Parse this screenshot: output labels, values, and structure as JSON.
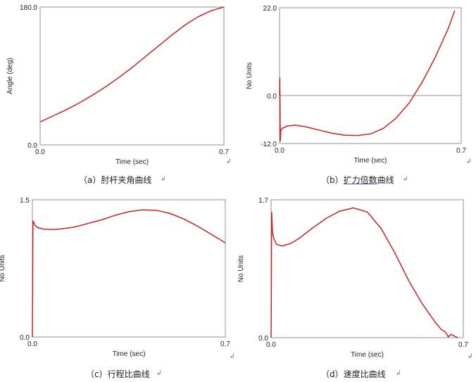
{
  "return_mark": "↲",
  "chart_data": [
    {
      "type": "line",
      "ylabel": "Angle (deg)",
      "xlabel": "Time (sec)",
      "xlim": [
        0.0,
        0.7
      ],
      "ylim": [
        0.0,
        180.0
      ],
      "x_ticks": [
        "0.0",
        "0.7"
      ],
      "y_ticks": [
        "0.0",
        "180.0"
      ],
      "grid": false,
      "caption": "（a）肘杆夹角曲线",
      "series": [
        {
          "color": "#cc2222",
          "x": [
            0.0,
            0.05,
            0.1,
            0.15,
            0.2,
            0.25,
            0.3,
            0.35,
            0.4,
            0.45,
            0.5,
            0.55,
            0.6,
            0.65,
            0.7
          ],
          "y": [
            30,
            38,
            46,
            55,
            65,
            76,
            88,
            101,
            115,
            129,
            143,
            156,
            167,
            175,
            180
          ]
        }
      ]
    },
    {
      "type": "line",
      "ylabel": "No Units",
      "xlabel": "Time (sec)",
      "xlim": [
        0.0,
        0.7
      ],
      "ylim": [
        -12.0,
        22.0
      ],
      "x_ticks": [
        "0.0",
        "0.7"
      ],
      "y_ticks": [
        "-12.0",
        "0.0",
        "22.0"
      ],
      "zero_line": true,
      "grid": false,
      "caption": "（b）扩力倍数曲线",
      "caption_underlined_part": "扩力倍数",
      "series": [
        {
          "color": "#cc2222",
          "x": [
            0.0,
            0.001,
            0.002,
            0.003,
            0.005,
            0.01,
            0.03,
            0.06,
            0.1,
            0.15,
            0.2,
            0.25,
            0.3,
            0.35,
            0.4,
            0.45,
            0.5,
            0.55,
            0.6,
            0.65,
            0.675
          ],
          "y": [
            0,
            4.5,
            -3,
            -11.5,
            -8.8,
            -8.2,
            -7.6,
            -7.4,
            -7.8,
            -8.6,
            -9.4,
            -9.9,
            -10.0,
            -9.6,
            -8.2,
            -5.6,
            -1.8,
            3.4,
            9.6,
            16.8,
            21.3
          ]
        }
      ]
    },
    {
      "type": "line",
      "ylabel": "No Units",
      "xlabel": "Time (sec)",
      "xlim": [
        0.0,
        0.7
      ],
      "ylim": [
        0.0,
        1.5
      ],
      "x_ticks": [
        "0.0",
        "0.7"
      ],
      "y_ticks": [
        "0.0",
        "1.5"
      ],
      "grid": false,
      "caption": "（c）行程比曲线",
      "series": [
        {
          "color": "#cc2222",
          "x": [
            0.0,
            0.001,
            0.002,
            0.005,
            0.01,
            0.02,
            0.04,
            0.07,
            0.1,
            0.15,
            0.2,
            0.25,
            0.3,
            0.35,
            0.4,
            0.45,
            0.5,
            0.55,
            0.6,
            0.65,
            0.7
          ],
          "y": [
            0,
            0.6,
            1.27,
            1.25,
            1.22,
            1.195,
            1.18,
            1.175,
            1.18,
            1.2,
            1.24,
            1.28,
            1.33,
            1.37,
            1.39,
            1.385,
            1.35,
            1.29,
            1.21,
            1.12,
            1.03
          ]
        }
      ]
    },
    {
      "type": "line",
      "ylabel": "No Units",
      "xlabel": "Time (sec)",
      "xlim": [
        0.0,
        0.7
      ],
      "ylim": [
        0.0,
        1.7
      ],
      "x_ticks": [
        "0.0",
        "0.7"
      ],
      "y_ticks": [
        "0.0",
        "1.7"
      ],
      "grid": false,
      "caption": "（d）速度比曲线",
      "series": [
        {
          "color": "#cc2222",
          "x": [
            0.0,
            0.001,
            0.002,
            0.005,
            0.01,
            0.02,
            0.04,
            0.07,
            0.1,
            0.15,
            0.2,
            0.25,
            0.3,
            0.35,
            0.4,
            0.45,
            0.5,
            0.55,
            0.6,
            0.62,
            0.635,
            0.645,
            0.655,
            0.68
          ],
          "y": [
            0,
            0.6,
            1.55,
            1.3,
            1.22,
            1.15,
            1.13,
            1.16,
            1.22,
            1.35,
            1.47,
            1.56,
            1.6,
            1.55,
            1.35,
            1.05,
            0.71,
            0.42,
            0.18,
            0.1,
            0.07,
            0.01,
            0.04,
            0.0
          ]
        }
      ]
    }
  ]
}
